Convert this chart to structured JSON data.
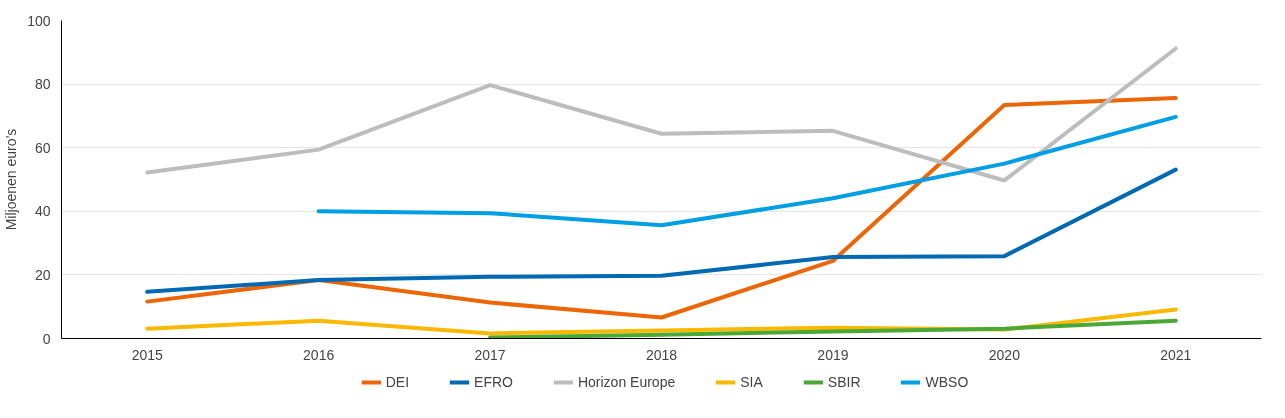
{
  "chart_data": {
    "type": "line",
    "ylabel": "Miljoenen euro’s",
    "categories": [
      "2015",
      "2016",
      "2017",
      "2018",
      "2019",
      "2020",
      "2021"
    ],
    "ylim": [
      0,
      100
    ],
    "yticks": [
      0,
      20,
      40,
      60,
      80,
      100
    ],
    "grid": "y",
    "legend": "bottom",
    "series": [
      {
        "name": "DEI",
        "color": "#ec6608",
        "values": [
          11.6,
          18.4,
          11.3,
          6.6,
          24.4,
          73.4,
          75.6
        ]
      },
      {
        "name": "EFRO",
        "color": "#0069b4",
        "values": [
          14.7,
          18.4,
          19.4,
          19.7,
          25.6,
          25.9,
          53.1
        ]
      },
      {
        "name": "Horizon Europe",
        "color": "#bdbdbd",
        "values": [
          52.2,
          59.4,
          79.7,
          64.4,
          65.3,
          49.7,
          91.2
        ]
      },
      {
        "name": "SIA",
        "color": "#fbb800",
        "values": [
          3.1,
          5.6,
          1.6,
          2.5,
          3.4,
          2.8,
          9.1
        ]
      },
      {
        "name": "SBIR",
        "color": "#4aa935",
        "values": [
          null,
          null,
          0.3,
          1.2,
          2.2,
          3.1,
          5.6
        ]
      },
      {
        "name": "WBSO",
        "color": "#009fe3",
        "values": [
          null,
          40,
          39.4,
          35.6,
          44.1,
          55,
          69.7
        ]
      }
    ]
  }
}
